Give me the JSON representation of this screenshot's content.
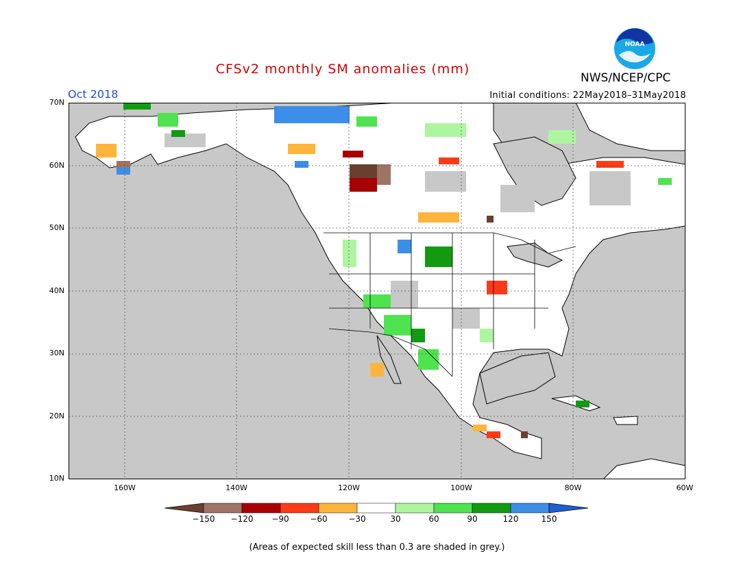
{
  "header": {
    "title": "CFSv2 monthly SM anomalies (mm)",
    "agency": "NWS/NCEP/CPC",
    "logo_text": "NOAA",
    "valid_month": "Oct 2018",
    "initial_conditions": "Initial conditions: 22May2018–31May2018"
  },
  "map": {
    "projection": "lat-lon",
    "lat_range": [
      10,
      70
    ],
    "lon_range": [
      -170,
      -60
    ],
    "grid": true,
    "ocean_color": "#c8c8c8",
    "lat_ticks": [
      "70N",
      "60N",
      "50N",
      "40N",
      "30N",
      "20N",
      "10N"
    ],
    "lon_ticks": [
      "160W",
      "140W",
      "120W",
      "100W",
      "80W",
      "60W"
    ]
  },
  "colorbar": {
    "labels": [
      "−150",
      "−120",
      "−90",
      "−60",
      "−30",
      "30",
      "60",
      "90",
      "120",
      "150"
    ],
    "colors": [
      "#6b3f2f",
      "#9e7466",
      "#a80000",
      "#ff3a17",
      "#ffb53c",
      "#ffffff",
      "#aef5a0",
      "#4fe34f",
      "#129b12",
      "#3c8ee6",
      "#1f5fcf"
    ]
  },
  "footnote": "(Areas of expected skill less than 0.3 are shaded in grey.)"
}
